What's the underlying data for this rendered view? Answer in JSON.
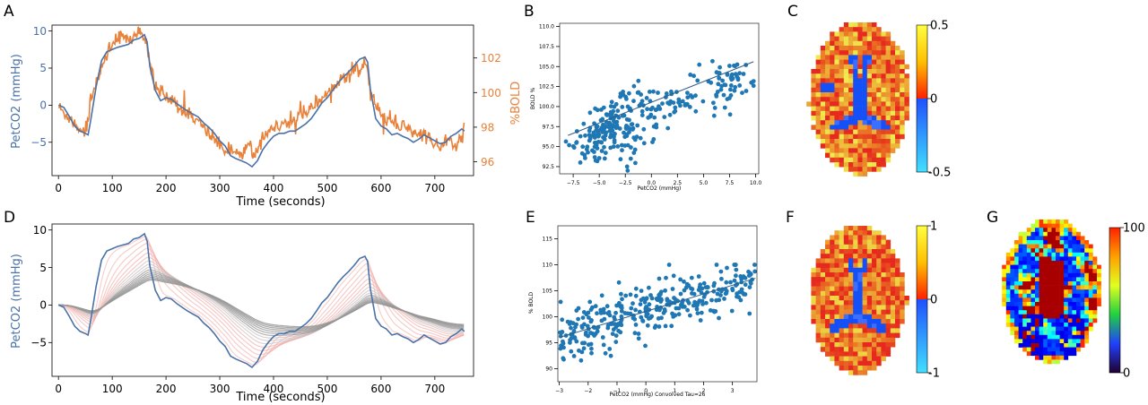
{
  "panel_labels": [
    "A",
    "B",
    "C",
    "D",
    "E",
    "F",
    "G"
  ],
  "colors": {
    "petco2": "#4a72a8",
    "bold": "#e8823a",
    "scatter": "#1f77b4",
    "orange_tick": "#e8823a"
  },
  "chart_data": [
    {
      "panel": "A",
      "type": "line",
      "xlabel": "Time (seconds)",
      "ylabel": "PetCO2 (mmHg)",
      "y2label": "%BOLD",
      "xlim": [
        -12,
        772
      ],
      "ylim": [
        -9.5,
        10.8
      ],
      "y2lim": [
        95.2,
        103.9
      ],
      "xticks": [
        0,
        100,
        200,
        300,
        400,
        500,
        600,
        700
      ],
      "yticks": [
        -5,
        0,
        5,
        10
      ],
      "y2ticks": [
        96,
        98,
        100,
        102
      ],
      "series": [
        {
          "axis": "left",
          "x": [
            0,
            10,
            20,
            30,
            40,
            50,
            55,
            60,
            70,
            80,
            90,
            100,
            110,
            120,
            130,
            140,
            150,
            160,
            165,
            170,
            180,
            190,
            200,
            210,
            220,
            230,
            240,
            250,
            260,
            270,
            280,
            290,
            300,
            310,
            320,
            330,
            340,
            350,
            360,
            370,
            380,
            390,
            400,
            410,
            420,
            430,
            440,
            450,
            460,
            470,
            480,
            490,
            500,
            510,
            520,
            530,
            540,
            550,
            560,
            570,
            575,
            580,
            590,
            600,
            610,
            620,
            630,
            640,
            650,
            660,
            670,
            680,
            690,
            700,
            710,
            720,
            730,
            740,
            750,
            755
          ],
          "values": [
            0,
            -0.3,
            -1.5,
            -2.8,
            -3.5,
            -3.8,
            -4,
            -2,
            2.5,
            6,
            7.2,
            7.5,
            7.8,
            8,
            8.2,
            8.8,
            9,
            9.5,
            8.5,
            5.2,
            2,
            0.6,
            1,
            0.8,
            0.2,
            -0.3,
            -0.8,
            -1.2,
            -1.6,
            -2.4,
            -3,
            -3.8,
            -4.8,
            -5.5,
            -6.8,
            -7.2,
            -7.5,
            -7.8,
            -8.3,
            -7.5,
            -6,
            -5,
            -4.2,
            -3.8,
            -3.8,
            -3.5,
            -3.5,
            -3,
            -2.5,
            -1.8,
            -0.8,
            0.3,
            1,
            2,
            3,
            3.8,
            4.5,
            5.3,
            6.2,
            6.5,
            5.8,
            2.2,
            -1.8,
            -2.8,
            -3.2,
            -4,
            -3.8,
            -4.2,
            -4.5,
            -5,
            -4.6,
            -4,
            -4.4,
            -4.8,
            -5.2,
            -5,
            -4.2,
            -3.8,
            -3.2,
            -3.5
          ]
        },
        {
          "axis": "right",
          "x": [
            0,
            10,
            20,
            30,
            40,
            50,
            55,
            60,
            70,
            80,
            90,
            100,
            110,
            120,
            130,
            140,
            150,
            160,
            170,
            180,
            190,
            200,
            210,
            220,
            230,
            240,
            250,
            260,
            270,
            280,
            290,
            300,
            310,
            320,
            330,
            340,
            350,
            360,
            370,
            380,
            390,
            400,
            410,
            420,
            430,
            440,
            450,
            460,
            470,
            480,
            490,
            500,
            510,
            520,
            530,
            540,
            550,
            560,
            570,
            580,
            590,
            600,
            610,
            620,
            630,
            640,
            650,
            660,
            670,
            680,
            690,
            700,
            710,
            720,
            730,
            740,
            750,
            755
          ],
          "values": [
            99.2,
            98.8,
            98.6,
            98.2,
            97.9,
            97.8,
            98.4,
            99.6,
            100.6,
            101.4,
            102.2,
            102.9,
            103.1,
            103.2,
            103.0,
            103.3,
            103.5,
            103.1,
            101.8,
            100.4,
            100.0,
            99.8,
            99.6,
            99.2,
            99.0,
            98.9,
            98.6,
            98.3,
            97.9,
            97.6,
            97.3,
            97.0,
            96.8,
            96.7,
            96.5,
            96.5,
            97.0,
            96.6,
            96.9,
            97.3,
            97.7,
            97.9,
            98.0,
            98.1,
            98.3,
            98.5,
            98.7,
            98.9,
            99.2,
            99.4,
            99.7,
            100.0,
            100.2,
            100.6,
            100.9,
            101.0,
            101.2,
            101.4,
            101.8,
            100.3,
            99.1,
            98.6,
            98.5,
            98.2,
            97.9,
            98.1,
            97.8,
            97.7,
            97.6,
            97.5,
            97.4,
            97.1,
            96.9,
            97.2,
            97.0,
            96.8,
            97.6,
            98.0
          ]
        }
      ]
    },
    {
      "panel": "B",
      "type": "scatter",
      "xlabel": "PetCO2 (mmHg)",
      "ylabel": "BOLD %",
      "xlim": [
        -8.8,
        10.3
      ],
      "ylim": [
        91.6,
        110.4
      ],
      "xticks": [
        -7.5,
        -5.0,
        -2.5,
        0.0,
        2.5,
        5.0,
        7.5,
        10.0
      ],
      "yticks": [
        92.5,
        95.0,
        97.5,
        100.0,
        102.5,
        105.0,
        107.5,
        110.0
      ],
      "fit": {
        "x": [
          -8,
          9.8
        ],
        "y": [
          96.4,
          105.6
        ]
      },
      "points": {
        "n": 300,
        "x_range": [
          -8.2,
          9.8
        ],
        "y_range": [
          92,
          110
        ]
      }
    },
    {
      "panel": "C",
      "type": "heatmap",
      "colorbar_ticks": [
        "0.5",
        "0",
        "-0.5"
      ]
    },
    {
      "panel": "D",
      "type": "line",
      "xlabel": "Time (seconds)",
      "ylabel": "PetCO2 (mmHg)",
      "xlim": [
        -12,
        772
      ],
      "ylim": [
        -9.5,
        10.8
      ],
      "xticks": [
        0,
        100,
        200,
        300,
        400,
        500,
        600,
        700
      ],
      "yticks": [
        -5,
        0,
        5,
        10
      ],
      "series": [
        {
          "x": [
            0,
            10,
            20,
            30,
            40,
            50,
            55,
            60,
            70,
            80,
            90,
            100,
            110,
            120,
            130,
            140,
            150,
            160,
            165,
            170,
            180,
            190,
            200,
            210,
            220,
            230,
            240,
            250,
            260,
            270,
            280,
            290,
            300,
            310,
            320,
            330,
            340,
            350,
            360,
            370,
            380,
            390,
            400,
            410,
            420,
            430,
            440,
            450,
            460,
            470,
            480,
            490,
            500,
            510,
            520,
            530,
            540,
            550,
            560,
            570,
            575,
            580,
            590,
            600,
            610,
            620,
            630,
            640,
            650,
            660,
            670,
            680,
            690,
            700,
            710,
            720,
            730,
            740,
            750,
            755
          ],
          "values": [
            0,
            -0.3,
            -1.5,
            -2.8,
            -3.5,
            -3.8,
            -4,
            -2,
            2.5,
            6,
            7.2,
            7.5,
            7.8,
            8,
            8.2,
            8.8,
            9,
            9.5,
            8.5,
            5.2,
            2,
            0.6,
            1,
            0.8,
            0.2,
            -0.3,
            -0.8,
            -1.2,
            -1.6,
            -2.4,
            -3,
            -3.8,
            -4.8,
            -5.5,
            -6.8,
            -7.2,
            -7.5,
            -7.8,
            -8.3,
            -7.5,
            -6,
            -5,
            -4.2,
            -3.8,
            -3.8,
            -3.5,
            -3.5,
            -3,
            -2.5,
            -1.8,
            -0.8,
            0.3,
            1,
            2,
            3,
            3.8,
            4.5,
            5.3,
            6.2,
            6.5,
            5.8,
            2.2,
            -1.8,
            -2.8,
            -3.2,
            -4,
            -3.8,
            -4.2,
            -4.5,
            -5,
            -4.6,
            -4,
            -4.4,
            -4.8,
            -5.2,
            -5,
            -4.2,
            -3.8,
            -3.2,
            -3.5
          ]
        }
      ],
      "convolved_curves": 16
    },
    {
      "panel": "E",
      "type": "scatter",
      "xlabel": "PetCO2 (mmHg) Convolved Tau=26",
      "ylabel": "% BOLD",
      "xlim": [
        -3.05,
        3.85
      ],
      "ylim": [
        87.5,
        117.5
      ],
      "xticks": [
        -3,
        -2,
        -1,
        0,
        1,
        2,
        3
      ],
      "yticks": [
        90,
        95,
        100,
        105,
        110,
        115
      ],
      "fit": {
        "x": [
          -3,
          3.8
        ],
        "y": [
          96,
          107.4
        ]
      },
      "points": {
        "n": 330,
        "x_range": [
          -3,
          3.8
        ],
        "y_range": [
          89,
          110
        ]
      }
    },
    {
      "panel": "F",
      "type": "heatmap",
      "colorbar_ticks": [
        "1",
        "0",
        "-1"
      ]
    },
    {
      "panel": "G",
      "type": "heatmap",
      "colorbar_ticks": [
        "100",
        "0"
      ]
    }
  ]
}
